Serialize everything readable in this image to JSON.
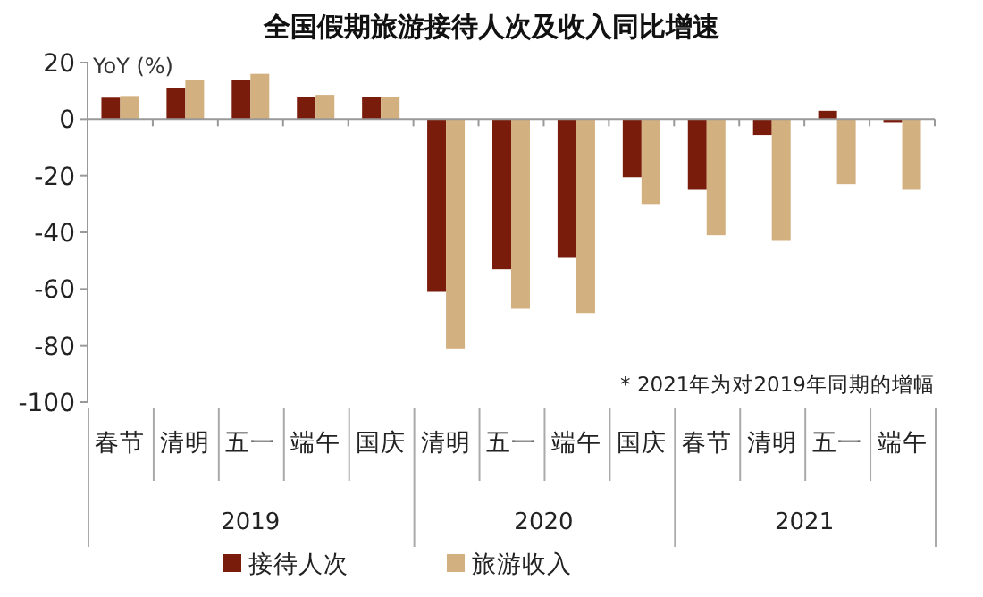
{
  "chart_data": {
    "type": "bar",
    "title": "全国假期旅游接待人次及收入同比增速",
    "ylabel": "YoY (%)",
    "categories": [
      "春节",
      "清明",
      "五一",
      "端午",
      "国庆",
      "清明",
      "五一",
      "端午",
      "国庆",
      "春节",
      "清明",
      "五一",
      "端午"
    ],
    "series": [
      {
        "name": "接待人次",
        "color": "#7a1c0b",
        "values": [
          7.6,
          10.9,
          13.8,
          7.7,
          7.8,
          -61,
          -53,
          -49,
          -20.5,
          -25,
          -5.6,
          3,
          -1.3
        ]
      },
      {
        "name": "旅游收入",
        "color": "#d3b07f",
        "values": [
          8.2,
          13.7,
          16,
          8.6,
          8,
          -81,
          -67,
          -68.5,
          -30,
          -41,
          -43,
          -23,
          -25
        ]
      }
    ],
    "ylim": [
      -100,
      20
    ],
    "yticks": [
      -100,
      -80,
      -60,
      -40,
      -20,
      0,
      20
    ],
    "annotations": [
      "2019",
      "2020",
      "2021",
      "* 2021年为对2019年同期的增幅"
    ],
    "legend": "bottom"
  }
}
